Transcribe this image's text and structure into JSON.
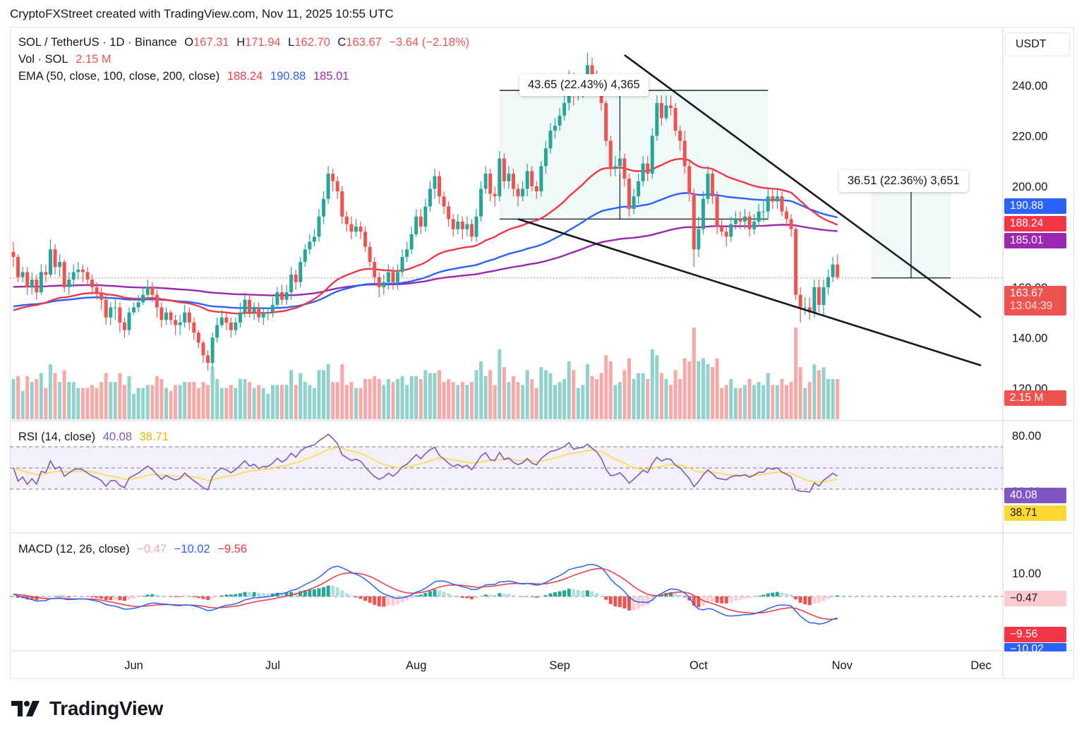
{
  "header": {
    "text": "CryptoFXStreet created with TradingView.com, Nov 11, 2025 10:55 UTC"
  },
  "legend": {
    "symbol": "SOL / TetherUS · 1D · Binance",
    "o_label": "O",
    "o": "167.31",
    "h_label": "H",
    "h": "171.94",
    "l_label": "L",
    "l": "162.70",
    "c_label": "C",
    "c": "163.67",
    "change": "−3.64 (−2.18%)",
    "vol_label": "Vol · SOL",
    "vol": "2.15 M",
    "ema_label": "EMA (50, close, 100, close, 200, close)",
    "ema50": "188.24",
    "ema100": "190.88",
    "ema200": "185.01",
    "rsi_label": "RSI (14, close)",
    "rsi": "40.08",
    "rsi_ma": "38.71",
    "macd_label": "MACD (12, 26, close)",
    "macd_hist": "−0.47",
    "macd": "−10.02",
    "macd_signal": "−9.56"
  },
  "currency_button": "USDT",
  "price_axis": {
    "ticks": [
      "240.00",
      "220.00",
      "200.00",
      "180.00",
      "160.00",
      "140.00",
      "120.00"
    ]
  },
  "rsi_axis": {
    "ticks": [
      "80.00",
      "28.00"
    ]
  },
  "macd_axis": {
    "ticks": [
      "10.00"
    ]
  },
  "badges": {
    "ema100": "190.88",
    "ema50": "188.24",
    "ema200": "185.01",
    "last_price": "163.67",
    "countdown": "13:04:39",
    "volume": "2.15 M",
    "rsi": "40.08",
    "rsi_ma": "38.71",
    "macd_hist": "−0.47",
    "macd_signal": "−9.56",
    "macd": "−10.02"
  },
  "measurements": {
    "top": "43.65 (22.43%) 4,365",
    "right": "36.51 (22.36%) 3,651"
  },
  "time_axis": [
    "Jun",
    "Jul",
    "Aug",
    "Sep",
    "Oct",
    "Nov",
    "Dec"
  ],
  "logo": {
    "text": "TradingView"
  },
  "colors": {
    "up": "#26a69a",
    "down": "#ef5350",
    "ema50": "#f23645",
    "ema100": "#2962ff",
    "ema200": "#9c27b0",
    "rsi": "#7e57c2",
    "rsi_ma": "#fdd835",
    "macd": "#2962ff",
    "signal": "#f23645"
  },
  "chart_data": {
    "type": "candlestick",
    "title": "SOL / TetherUS · 1D · Binance",
    "ylim": [
      112,
      256
    ],
    "x_range": [
      "2025-05-06",
      "2025-12-24"
    ],
    "series": [
      {
        "name": "SOL / TetherUS",
        "kind": "candles",
        "start_date": "2025-05-06",
        "close": [
          172,
          164,
          166,
          160,
          163,
          158,
          166,
          165,
          175,
          168,
          170,
          160,
          163,
          166,
          167,
          166,
          163,
          160,
          158,
          155,
          148,
          152,
          152,
          146,
          143,
          150,
          152,
          154,
          157,
          160,
          157,
          152,
          147,
          150,
          147,
          145,
          146,
          150,
          146,
          142,
          138,
          133,
          130,
          140,
          145,
          148,
          146,
          143,
          146,
          150,
          155,
          150,
          152,
          148,
          150,
          150,
          153,
          158,
          155,
          158,
          165,
          162,
          170,
          175,
          178,
          180,
          188,
          195,
          205,
          202,
          198,
          188,
          185,
          182,
          184,
          182,
          176,
          170,
          164,
          160,
          162,
          166,
          162,
          166,
          172,
          175,
          181,
          188,
          184,
          192,
          199,
          204,
          196,
          192,
          187,
          183,
          186,
          183,
          185,
          180,
          188,
          199,
          205,
          197,
          196,
          211,
          202,
          205,
          199,
          196,
          199,
          206,
          200,
          198,
          208,
          215,
          222,
          224,
          228,
          233,
          243,
          236,
          239,
          240,
          248,
          244,
          240,
          233,
          218,
          207,
          208,
          211,
          203,
          191,
          196,
          202,
          209,
          205,
          220,
          233,
          227,
          232,
          231,
          222,
          218,
          208,
          197,
          175,
          183,
          195,
          205,
          196,
          184,
          182,
          180,
          185,
          187,
          186,
          188,
          183,
          186,
          190,
          190,
          196,
          194,
          196,
          190,
          187,
          183,
          157,
          152,
          152,
          150,
          160,
          153,
          160,
          164,
          169,
          164
        ],
        "high": [
          178,
          173,
          168,
          168,
          166,
          165,
          169,
          169,
          179,
          177,
          173,
          171,
          166,
          169,
          170,
          169,
          168,
          165,
          162,
          160,
          157,
          154,
          156,
          154,
          148,
          152,
          154,
          157,
          160,
          163,
          162,
          159,
          154,
          152,
          151,
          149,
          149,
          153,
          152,
          148,
          143,
          139,
          135,
          142,
          148,
          151,
          150,
          148,
          148,
          154,
          158,
          157,
          154,
          154,
          152,
          152,
          156,
          160,
          161,
          161,
          168,
          167,
          172,
          177,
          181,
          183,
          191,
          198,
          208,
          207,
          204,
          200,
          190,
          188,
          187,
          186,
          184,
          178,
          172,
          166,
          165,
          169,
          168,
          169,
          175,
          178,
          184,
          191,
          191,
          195,
          202,
          207,
          206,
          198,
          194,
          189,
          189,
          188,
          188,
          187,
          191,
          202,
          208,
          207,
          200,
          214,
          213,
          208,
          207,
          201,
          202,
          209,
          208,
          202,
          210,
          218,
          225,
          227,
          231,
          236,
          246,
          245,
          241,
          243,
          253,
          251,
          246,
          242,
          234,
          220,
          212,
          214,
          213,
          205,
          199,
          205,
          212,
          212,
          223,
          236,
          236,
          236,
          236,
          233,
          224,
          222,
          210,
          199,
          188,
          198,
          208,
          207,
          198,
          187,
          184,
          188,
          190,
          190,
          191,
          190,
          189,
          193,
          194,
          199,
          199,
          199,
          198,
          192,
          189,
          185,
          160,
          156,
          156,
          163,
          163,
          163,
          167,
          172,
          173
        ],
        "low": [
          168,
          162,
          162,
          157,
          157,
          155,
          157,
          162,
          164,
          165,
          164,
          158,
          157,
          160,
          163,
          162,
          161,
          157,
          155,
          151,
          145,
          145,
          147,
          142,
          140,
          141,
          149,
          150,
          153,
          155,
          154,
          148,
          144,
          145,
          145,
          141,
          141,
          144,
          143,
          139,
          136,
          130,
          127,
          128,
          138,
          144,
          143,
          140,
          141,
          144,
          148,
          148,
          147,
          146,
          145,
          147,
          148,
          152,
          153,
          153,
          155,
          159,
          160,
          168,
          173,
          176,
          178,
          185,
          193,
          198,
          195,
          185,
          182,
          179,
          180,
          179,
          174,
          168,
          161,
          156,
          157,
          159,
          159,
          159,
          164,
          170,
          173,
          180,
          181,
          182,
          190,
          195,
          193,
          189,
          184,
          180,
          181,
          179,
          180,
          178,
          178,
          186,
          197,
          194,
          192,
          194,
          199,
          199,
          196,
          192,
          194,
          196,
          198,
          195,
          196,
          205,
          213,
          219,
          222,
          226,
          230,
          232,
          234,
          235,
          238,
          240,
          236,
          230,
          216,
          204,
          204,
          205,
          200,
          188,
          189,
          193,
          200,
          202,
          203,
          218,
          224,
          226,
          228,
          220,
          214,
          205,
          194,
          168,
          172,
          181,
          193,
          193,
          181,
          180,
          176,
          178,
          183,
          183,
          183,
          180,
          181,
          184,
          186,
          187,
          191,
          191,
          188,
          184,
          180,
          155,
          146,
          149,
          147,
          148,
          150,
          149,
          157,
          162,
          163
        ],
        "volume_note": "daily volume in SOL, last 2.15 M"
      },
      {
        "name": "EMA 50",
        "last": 188.24
      },
      {
        "name": "EMA 100",
        "last": 190.88
      },
      {
        "name": "EMA 200",
        "last": 185.01
      }
    ],
    "indicators": {
      "rsi": {
        "name": "RSI (14, close)",
        "last": 40.08,
        "ma_last": 38.71,
        "bands": [
          70,
          50,
          30
        ]
      },
      "macd": {
        "name": "MACD (12, 26, close)",
        "hist_last": -0.47,
        "macd_last": -10.02,
        "signal_last": -9.56
      }
    },
    "drawings": {
      "upper_trendline": {
        "from": [
          "2025-09-15",
          252
        ],
        "to": [
          "2025-12-01",
          148
        ]
      },
      "lower_trendline": {
        "from": [
          "2025-08-23",
          187
        ],
        "to": [
          "2025-12-01",
          129
        ]
      },
      "range_box": {
        "from": [
          "2025-08-19",
          238
        ],
        "to": [
          "2025-10-16",
          187
        ]
      },
      "measure_top": {
        "value": "43.65 (22.43%) 4,365"
      },
      "measure_right": {
        "value": "36.51 (22.36%) 3,651",
        "from": 163.67,
        "to": 200.18
      }
    }
  }
}
